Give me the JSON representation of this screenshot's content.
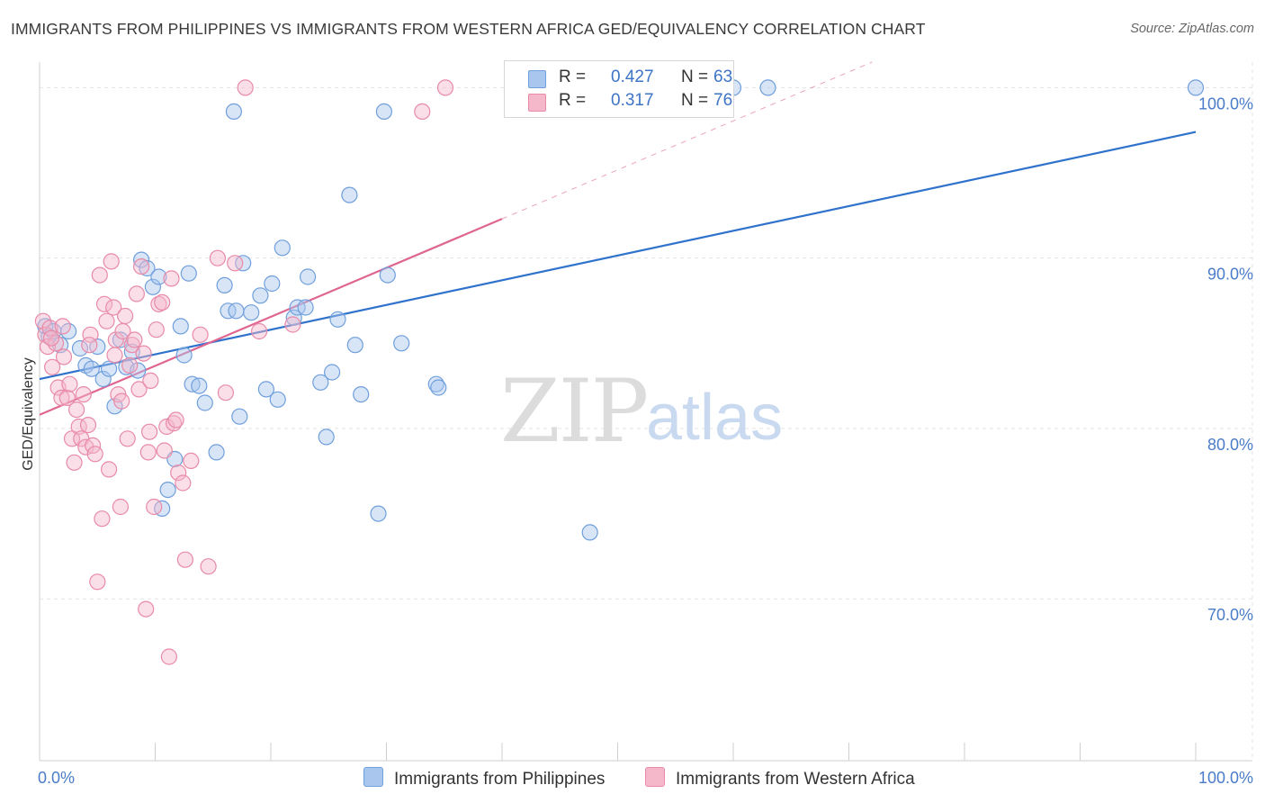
{
  "header": {
    "title": "IMMIGRANTS FROM PHILIPPINES VS IMMIGRANTS FROM WESTERN AFRICA GED/EQUIVALENCY CORRELATION CHART",
    "source": "Source: ZipAtlas.com"
  },
  "watermark": {
    "zip": "ZIP",
    "atlas": "atlas"
  },
  "legend": {
    "rows": [
      {
        "r_label": "R =",
        "r_value": "0.427",
        "n_label": "N =",
        "n_value": "63"
      },
      {
        "r_label": "R =",
        "r_value": "0.317",
        "n_label": "N =",
        "n_value": "76"
      }
    ]
  },
  "colors": {
    "blue_fill": "#a9c6ee",
    "blue_stroke": "#6f9fdc",
    "blue_line": "#2f72cc",
    "pink_fill": "#f5b8cb",
    "pink_stroke": "#e88aa8",
    "pink_line": "#e06692",
    "grid": "#e4e4e4",
    "axis_text": "#4a7cc9"
  },
  "chart_data": {
    "type": "scatter",
    "title": "IMMIGRANTS FROM PHILIPPINES VS IMMIGRANTS FROM WESTERN AFRICA GED/EQUIVALENCY CORRELATION CHART",
    "xlabel": "",
    "ylabel": "GED/Equivalency",
    "xlim": [
      0,
      100
    ],
    "ylim": [
      60.5,
      101.5
    ],
    "x_tick_labels": [
      "0.0%",
      "100.0%"
    ],
    "y_ticks": [
      70,
      80,
      90,
      100
    ],
    "y_tick_labels": [
      "70.0%",
      "80.0%",
      "90.0%",
      "100.0%"
    ],
    "grid": true,
    "legend_position": "top-center",
    "series": [
      {
        "name": "Immigrants from Philippines",
        "color": "#a9c6ee",
        "r": 0.427,
        "n": 63,
        "trend": {
          "x": [
            0,
            100
          ],
          "y": [
            82.9,
            97.4
          ],
          "extended": false
        },
        "points": [
          [
            0.5,
            86.0
          ],
          [
            0.8,
            85.4
          ],
          [
            1.2,
            85.7
          ],
          [
            1.8,
            84.9
          ],
          [
            2.5,
            85.7
          ],
          [
            3.5,
            84.7
          ],
          [
            4.0,
            83.7
          ],
          [
            4.5,
            83.5
          ],
          [
            5.0,
            84.8
          ],
          [
            5.5,
            82.9
          ],
          [
            6.0,
            83.5
          ],
          [
            6.5,
            81.3
          ],
          [
            7.0,
            85.2
          ],
          [
            7.5,
            83.6
          ],
          [
            8.0,
            84.5
          ],
          [
            8.5,
            83.4
          ],
          [
            8.8,
            89.9
          ],
          [
            9.3,
            89.4
          ],
          [
            9.8,
            88.3
          ],
          [
            10.3,
            88.9
          ],
          [
            10.6,
            75.3
          ],
          [
            11.1,
            76.4
          ],
          [
            11.7,
            78.2
          ],
          [
            12.2,
            86.0
          ],
          [
            12.5,
            84.3
          ],
          [
            12.9,
            89.1
          ],
          [
            13.2,
            82.6
          ],
          [
            13.8,
            82.5
          ],
          [
            14.3,
            81.5
          ],
          [
            15.3,
            78.6
          ],
          [
            16.0,
            88.4
          ],
          [
            16.3,
            86.9
          ],
          [
            16.8,
            98.6
          ],
          [
            17.3,
            80.7
          ],
          [
            17.6,
            89.7
          ],
          [
            18.3,
            86.8
          ],
          [
            19.1,
            87.8
          ],
          [
            19.6,
            82.3
          ],
          [
            20.1,
            88.5
          ],
          [
            20.6,
            81.7
          ],
          [
            21.0,
            90.6
          ],
          [
            22.0,
            86.5
          ],
          [
            22.3,
            87.1
          ],
          [
            23.0,
            87.1
          ],
          [
            23.2,
            88.9
          ],
          [
            24.3,
            82.7
          ],
          [
            24.8,
            79.5
          ],
          [
            25.3,
            83.3
          ],
          [
            25.8,
            86.4
          ],
          [
            26.8,
            93.7
          ],
          [
            27.3,
            84.9
          ],
          [
            27.8,
            82.0
          ],
          [
            29.3,
            75.0
          ],
          [
            29.8,
            98.6
          ],
          [
            30.1,
            89.0
          ],
          [
            31.3,
            85.0
          ],
          [
            34.3,
            82.6
          ],
          [
            34.5,
            82.4
          ],
          [
            47.6,
            73.9
          ],
          [
            60.0,
            100.0
          ],
          [
            63.0,
            100.0
          ],
          [
            100.0,
            100.0
          ],
          [
            17.0,
            86.9
          ]
        ]
      },
      {
        "name": "Immigrants from Western Africa",
        "color": "#f5b8cb",
        "r": 0.317,
        "n": 76,
        "trend": {
          "x": [
            0,
            40
          ],
          "y": [
            80.8,
            92.3
          ],
          "extended": true,
          "extended_to": [
            100,
            109.6
          ]
        },
        "points": [
          [
            0.3,
            86.3
          ],
          [
            0.5,
            85.5
          ],
          [
            0.7,
            84.8
          ],
          [
            0.9,
            85.9
          ],
          [
            1.1,
            83.6
          ],
          [
            1.4,
            85.0
          ],
          [
            1.6,
            82.4
          ],
          [
            1.9,
            81.8
          ],
          [
            2.1,
            84.2
          ],
          [
            2.4,
            81.8
          ],
          [
            2.6,
            82.6
          ],
          [
            2.8,
            79.4
          ],
          [
            3.0,
            78.0
          ],
          [
            3.2,
            81.1
          ],
          [
            3.4,
            80.1
          ],
          [
            3.6,
            79.4
          ],
          [
            3.8,
            82.0
          ],
          [
            4.0,
            78.9
          ],
          [
            4.2,
            80.2
          ],
          [
            4.4,
            85.5
          ],
          [
            4.6,
            79.0
          ],
          [
            4.8,
            78.5
          ],
          [
            5.0,
            71.0
          ],
          [
            5.2,
            89.0
          ],
          [
            5.4,
            74.7
          ],
          [
            5.6,
            87.3
          ],
          [
            5.8,
            86.3
          ],
          [
            6.0,
            77.6
          ],
          [
            6.2,
            89.8
          ],
          [
            6.4,
            87.1
          ],
          [
            6.6,
            85.2
          ],
          [
            6.8,
            82.0
          ],
          [
            7.0,
            75.4
          ],
          [
            7.2,
            85.7
          ],
          [
            7.4,
            86.6
          ],
          [
            7.6,
            79.4
          ],
          [
            7.8,
            83.7
          ],
          [
            8.0,
            84.9
          ],
          [
            8.2,
            85.2
          ],
          [
            8.4,
            87.9
          ],
          [
            8.6,
            82.3
          ],
          [
            8.8,
            89.5
          ],
          [
            9.0,
            84.4
          ],
          [
            9.2,
            69.4
          ],
          [
            9.4,
            78.6
          ],
          [
            9.6,
            82.8
          ],
          [
            9.9,
            75.4
          ],
          [
            10.1,
            85.8
          ],
          [
            10.3,
            87.3
          ],
          [
            10.6,
            87.4
          ],
          [
            10.8,
            78.7
          ],
          [
            11.0,
            80.1
          ],
          [
            11.2,
            66.6
          ],
          [
            11.4,
            88.8
          ],
          [
            11.6,
            80.3
          ],
          [
            11.8,
            80.5
          ],
          [
            12.0,
            77.4
          ],
          [
            12.4,
            76.8
          ],
          [
            12.6,
            72.3
          ],
          [
            13.1,
            78.1
          ],
          [
            13.9,
            85.5
          ],
          [
            14.6,
            71.9
          ],
          [
            15.4,
            90.0
          ],
          [
            16.1,
            82.1
          ],
          [
            16.9,
            89.7
          ],
          [
            17.8,
            100.0
          ],
          [
            19.0,
            85.7
          ],
          [
            21.9,
            86.1
          ],
          [
            33.1,
            98.6
          ],
          [
            35.1,
            100.0
          ],
          [
            1.0,
            85.3
          ],
          [
            2.0,
            86.0
          ],
          [
            4.3,
            84.9
          ],
          [
            6.5,
            84.3
          ],
          [
            9.5,
            79.8
          ],
          [
            7.1,
            81.6
          ]
        ]
      }
    ]
  },
  "bottom_legend": {
    "items": [
      {
        "label": "Immigrants from Philippines"
      },
      {
        "label": "Immigrants from Western Africa"
      }
    ]
  }
}
